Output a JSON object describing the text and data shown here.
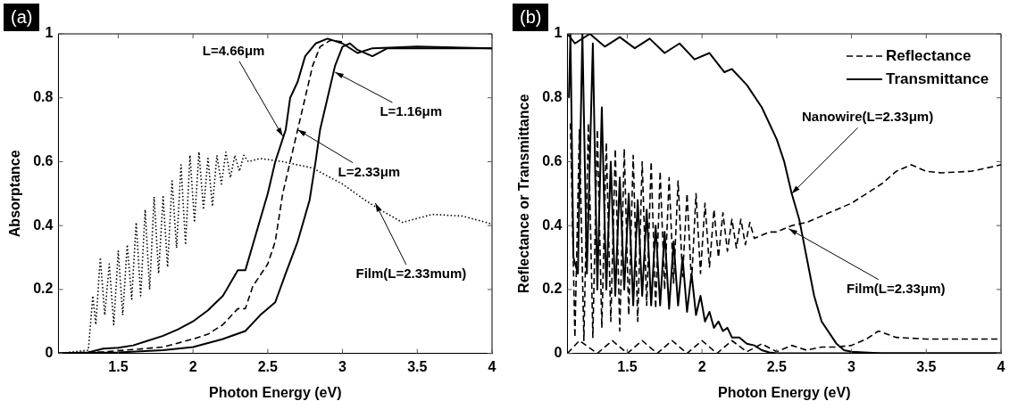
{
  "chart_data": [
    {
      "type": "line",
      "xlabel": "Photon Energy (eV)",
      "ylabel": "Absorptance",
      "xlim": [
        1.1,
        4
      ],
      "ylim": [
        0,
        1
      ],
      "xticks": [
        1.5,
        2,
        2.5,
        3,
        3.5,
        4
      ],
      "yticks": [
        0,
        0.2,
        0.4,
        0.6,
        0.8,
        1
      ],
      "grid": false,
      "legend": false,
      "annotations": [
        "(a)",
        {
          "text": "L=4.66μm",
          "x": 2.6,
          "y": 0.68
        },
        {
          "text": "L=1.16μm",
          "x": 2.95,
          "y": 0.88
        },
        {
          "text": "L=2.33μm",
          "x": 2.7,
          "y": 0.7
        },
        {
          "text": "Film(L=2.33mum)",
          "x": 3.22,
          "y": 0.47
        }
      ],
      "series": [
        {
          "color": "#000000",
          "line_style": "solid",
          "x": [
            1.1,
            1.3,
            1.4,
            1.5,
            1.6,
            1.7,
            1.8,
            1.9,
            2.0,
            2.1,
            2.2,
            2.3,
            2.35,
            2.4,
            2.5,
            2.55,
            2.62,
            2.65,
            2.7,
            2.75,
            2.82,
            2.9,
            3.0,
            3.1,
            3.2,
            3.5,
            4.0
          ],
          "values": [
            0,
            0.003,
            0.015,
            0.018,
            0.025,
            0.04,
            0.055,
            0.075,
            0.1,
            0.135,
            0.18,
            0.26,
            0.26,
            0.34,
            0.5,
            0.6,
            0.7,
            0.8,
            0.85,
            0.93,
            0.97,
            0.985,
            0.97,
            0.94,
            0.955,
            0.96,
            0.955
          ]
        },
        {
          "color": "#000000",
          "line_style": "dashed",
          "x": [
            1.1,
            1.4,
            1.6,
            1.8,
            2.0,
            2.1,
            2.2,
            2.3,
            2.35,
            2.4,
            2.5,
            2.55,
            2.6,
            2.65,
            2.7,
            2.75,
            2.8,
            2.85,
            2.92,
            3.0
          ],
          "values": [
            0,
            0.005,
            0.012,
            0.02,
            0.045,
            0.06,
            0.09,
            0.14,
            0.14,
            0.21,
            0.28,
            0.35,
            0.5,
            0.6,
            0.7,
            0.8,
            0.9,
            0.96,
            0.98,
            0.975
          ]
        },
        {
          "color": "#000000",
          "line_style": "solid",
          "x": [
            1.1,
            1.5,
            1.8,
            2.0,
            2.2,
            2.35,
            2.45,
            2.55,
            2.62,
            2.7,
            2.78,
            2.82,
            2.85,
            2.9,
            2.95,
            3.0,
            3.05,
            3.1,
            3.2,
            3.3,
            4.0
          ],
          "values": [
            0,
            0.003,
            0.01,
            0.02,
            0.045,
            0.07,
            0.12,
            0.16,
            0.25,
            0.35,
            0.48,
            0.6,
            0.7,
            0.8,
            0.9,
            0.96,
            0.97,
            0.95,
            0.93,
            0.955,
            0.955
          ]
        },
        {
          "color": "#000000",
          "line_style": "dotted",
          "x": [
            1.1,
            1.3,
            1.33,
            1.35,
            1.38,
            1.41,
            1.44,
            1.47,
            1.5,
            1.53,
            1.56,
            1.59,
            1.62,
            1.65,
            1.68,
            1.71,
            1.74,
            1.77,
            1.8,
            1.83,
            1.86,
            1.89,
            1.92,
            1.95,
            1.98,
            2.01,
            2.04,
            2.07,
            2.1,
            2.13,
            2.16,
            2.19,
            2.22,
            2.25,
            2.28,
            2.31,
            2.34,
            2.37,
            2.45,
            2.6,
            2.8,
            3.0,
            3.15,
            3.25,
            3.4,
            3.6,
            3.8,
            4.0
          ],
          "values": [
            0,
            0.01,
            0.18,
            0.09,
            0.3,
            0.12,
            0.28,
            0.09,
            0.32,
            0.12,
            0.34,
            0.17,
            0.41,
            0.18,
            0.45,
            0.2,
            0.49,
            0.25,
            0.49,
            0.27,
            0.54,
            0.33,
            0.59,
            0.34,
            0.62,
            0.41,
            0.63,
            0.45,
            0.61,
            0.46,
            0.62,
            0.53,
            0.63,
            0.55,
            0.62,
            0.57,
            0.62,
            0.6,
            0.61,
            0.6,
            0.58,
            0.53,
            0.48,
            0.45,
            0.41,
            0.435,
            0.43,
            0.405
          ]
        }
      ]
    },
    {
      "type": "line",
      "xlabel": "Photon Energy (eV)",
      "ylabel": "Reflectance or Transmittance",
      "xlim": [
        1.1,
        4
      ],
      "ylim": [
        0,
        1
      ],
      "xticks": [
        1.5,
        2,
        2.5,
        3,
        3.5,
        4
      ],
      "yticks": [
        0,
        0.2,
        0.4,
        0.6,
        0.8,
        1
      ],
      "grid": false,
      "legend": "top right",
      "annotations": [
        "(b)",
        {
          "text": "Nanowire(L=2.33μm)",
          "x": 2.6,
          "y": 0.5
        },
        {
          "text": "Film(L=2.33μm)",
          "x": 2.58,
          "y": 0.39
        }
      ],
      "series": [
        {
          "name": "Reflectance",
          "color": "#000000",
          "line_style": "dashed",
          "x": [
            1.1,
            1.18,
            1.3,
            1.4,
            1.5,
            1.6,
            1.7,
            1.8,
            1.9,
            2.0,
            2.1,
            2.2,
            2.3,
            2.4,
            2.5,
            2.6,
            2.7,
            2.8,
            2.9,
            3.0,
            3.1,
            3.18,
            3.3,
            3.5,
            4.0
          ],
          "values": [
            0,
            0.04,
            0,
            0.04,
            0,
            0.04,
            0,
            0.04,
            0,
            0.04,
            0,
            0.04,
            0.005,
            0.03,
            0.005,
            0.025,
            0.01,
            0.02,
            0.02,
            0.025,
            0.045,
            0.07,
            0.05,
            0.045,
            0.045
          ]
        },
        {
          "name": "Transmittance",
          "color": "#000000",
          "line_style": "solid",
          "x": [
            1.1,
            1.15,
            1.25,
            1.35,
            1.45,
            1.55,
            1.65,
            1.75,
            1.85,
            1.95,
            2.05,
            2.15,
            2.2,
            2.3,
            2.4,
            2.5,
            2.55,
            2.6,
            2.65,
            2.7,
            2.75,
            2.8,
            2.9,
            2.95,
            3.0,
            3.2,
            4.0
          ],
          "values": [
            1.0,
            0.97,
            1.0,
            0.96,
            0.99,
            0.955,
            0.985,
            0.94,
            0.97,
            0.92,
            0.94,
            0.88,
            0.89,
            0.84,
            0.77,
            0.67,
            0.6,
            0.5,
            0.42,
            0.3,
            0.18,
            0.1,
            0.03,
            0.01,
            0.005,
            0,
            0
          ]
        },
        {
          "color": "#000000",
          "line_style": "dashed",
          "x": [
            1.12,
            1.15,
            1.18,
            1.21,
            1.24,
            1.27,
            1.3,
            1.33,
            1.36,
            1.39,
            1.42,
            1.45,
            1.48,
            1.51,
            1.54,
            1.57,
            1.6,
            1.63,
            1.66,
            1.69,
            1.72,
            1.75,
            1.78,
            1.81,
            1.84,
            1.87,
            1.9,
            1.93,
            1.96,
            1.99,
            2.02,
            2.05,
            2.08,
            2.11,
            2.14,
            2.17,
            2.2,
            2.23,
            2.26,
            2.29,
            2.32,
            2.35,
            2.4,
            2.45,
            2.5,
            2.6,
            2.7,
            2.8,
            2.9,
            3.0,
            3.1,
            3.2,
            3.3,
            3.4,
            3.5,
            3.6,
            3.8,
            4.0
          ],
          "values": [
            0.72,
            0.05,
            0.7,
            0.04,
            0.72,
            0.05,
            0.7,
            0.08,
            0.66,
            0.1,
            0.64,
            0.07,
            0.64,
            0.12,
            0.62,
            0.1,
            0.6,
            0.15,
            0.6,
            0.14,
            0.57,
            0.2,
            0.55,
            0.22,
            0.54,
            0.24,
            0.5,
            0.22,
            0.5,
            0.25,
            0.47,
            0.27,
            0.45,
            0.3,
            0.44,
            0.32,
            0.42,
            0.33,
            0.42,
            0.34,
            0.41,
            0.36,
            0.37,
            0.38,
            0.38,
            0.4,
            0.41,
            0.43,
            0.45,
            0.47,
            0.5,
            0.53,
            0.57,
            0.59,
            0.57,
            0.565,
            0.57,
            0.59
          ]
        },
        {
          "color": "#000000",
          "line_style": "solid",
          "x": [
            1.11,
            1.12,
            1.14,
            1.17,
            1.2,
            1.23,
            1.27,
            1.3,
            1.33,
            1.36,
            1.39,
            1.42,
            1.45,
            1.48,
            1.51,
            1.54,
            1.57,
            1.6,
            1.63,
            1.66,
            1.69,
            1.72,
            1.75,
            1.78,
            1.81,
            1.84,
            1.87,
            1.9,
            1.93,
            1.96,
            1.99,
            2.02,
            2.05,
            2.08,
            2.11,
            2.14,
            2.17,
            2.2,
            2.25,
            2.3,
            2.35,
            2.4,
            2.45,
            2.5,
            3.0,
            4.0
          ],
          "values": [
            0.8,
            1.0,
            0.3,
            0.25,
            1.0,
            0.25,
            0.97,
            0.2,
            0.77,
            0.2,
            0.6,
            0.18,
            0.55,
            0.2,
            0.5,
            0.15,
            0.48,
            0.18,
            0.45,
            0.15,
            0.4,
            0.15,
            0.38,
            0.14,
            0.35,
            0.15,
            0.3,
            0.13,
            0.25,
            0.12,
            0.18,
            0.1,
            0.13,
            0.08,
            0.1,
            0.07,
            0.08,
            0.05,
            0.05,
            0.03,
            0.025,
            0.01,
            0.003,
            0,
            0,
            0
          ]
        }
      ]
    }
  ]
}
